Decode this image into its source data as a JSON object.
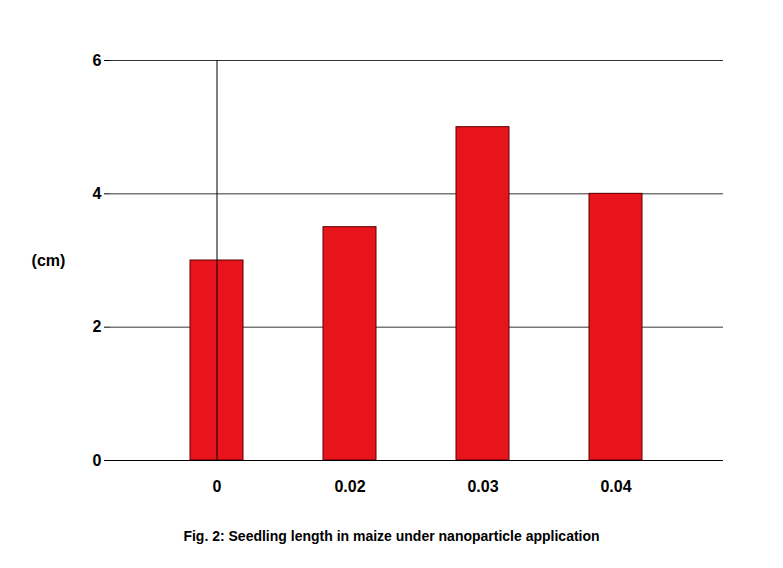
{
  "chart_data": {
    "type": "bar",
    "title": "Fig. 2: Seedling length in maize under nanoparticle application",
    "y_label": "(cm)",
    "categories": [
      "0",
      "0.02",
      "0.03",
      "0.04"
    ],
    "values": [
      3,
      3.5,
      5,
      4
    ],
    "color": "#e8141c",
    "ylim": [
      0,
      6
    ],
    "yticks": [
      0,
      2,
      4,
      6
    ],
    "grid": true
  }
}
